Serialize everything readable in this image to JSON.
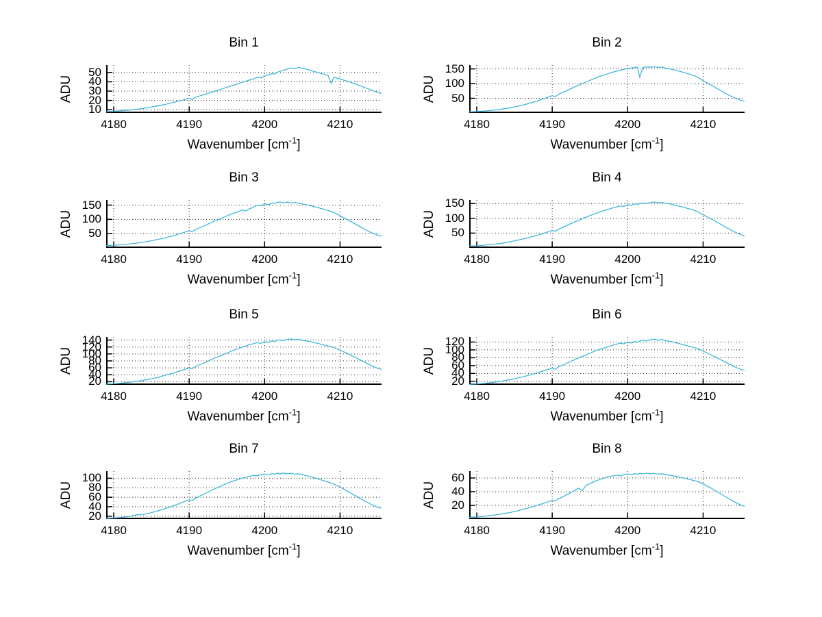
{
  "figure": {
    "background": "#ffffff"
  },
  "chart_data": {
    "type": "line",
    "line_color": "#3fb6dc",
    "grid": "dotted",
    "legend": "none",
    "ylabel": "ADU",
    "xlabel_prefix": "Wavenumber [cm",
    "xlabel_sup": "-1",
    "xlabel_suffix": "]",
    "xlim": [
      4179,
      4215.5
    ],
    "xticks": [
      4180,
      4190,
      4200,
      4210
    ],
    "x": [
      4179,
      4180,
      4181,
      4182,
      4183,
      4184,
      4185,
      4186,
      4187,
      4188,
      4189,
      4190,
      4190.4,
      4190.8,
      4191.5,
      4192,
      4193,
      4193.5,
      4194,
      4194.5,
      4195,
      4195.5,
      4196,
      4196.5,
      4197,
      4197.5,
      4198,
      4198.5,
      4199,
      4199.5,
      4200,
      4200.5,
      4201,
      4201.3,
      4201.6,
      4202,
      4202.5,
      4203,
      4203.5,
      4204,
      4204.5,
      4205,
      4205.5,
      4206,
      4206.5,
      4207,
      4207.5,
      4208,
      4208.4,
      4208.8,
      4209.2,
      4210,
      4211,
      4212,
      4213,
      4214,
      4215,
      4215.5
    ],
    "charts": [
      {
        "title": "Bin 1",
        "yticks": [
          10,
          20,
          30,
          40,
          50
        ],
        "ylim": [
          6.5,
          58
        ],
        "y": [
          8.0,
          8.3,
          8.9,
          9.6,
          10.5,
          11.6,
          12.9,
          14.4,
          16.1,
          18.0,
          20.1,
          22.3,
          21.0,
          23.3,
          25.1,
          26.4,
          28.9,
          30.1,
          31.4,
          32.8,
          34.1,
          35.4,
          36.7,
          38.0,
          39.3,
          40.6,
          41.9,
          43.1,
          44.8,
          44.2,
          46.3,
          47.6,
          49.0,
          48.2,
          50.0,
          51.2,
          52.4,
          53.6,
          55.0,
          53.9,
          55.6,
          54.4,
          53.6,
          52.4,
          51.3,
          50.1,
          48.9,
          47.9,
          47.0,
          38.5,
          44.8,
          43.2,
          40.6,
          37.8,
          34.7,
          31.6,
          28.6,
          27.3
        ]
      },
      {
        "title": "Bin 2",
        "yticks": [
          50,
          100,
          150
        ],
        "ylim": [
          0,
          163
        ],
        "y": [
          4.0,
          5.2,
          6.8,
          9.0,
          12.0,
          15.8,
          20.5,
          26.2,
          33.0,
          40.8,
          49.5,
          59.0,
          55.0,
          63.5,
          71.5,
          77.0,
          89.0,
          94.5,
          100.0,
          105.5,
          111.0,
          116.5,
          122.0,
          126.5,
          130.5,
          134.5,
          138.5,
          142.0,
          145.5,
          148.5,
          151.0,
          153.0,
          155.0,
          156.0,
          122.0,
          154.5,
          156.5,
          155.5,
          157.0,
          155.0,
          156.5,
          152.5,
          150.5,
          147.5,
          144.5,
          141.0,
          137.5,
          133.5,
          130.5,
          127.0,
          123.0,
          110.0,
          96.0,
          81.0,
          66.0,
          53.0,
          43.0,
          40.0
        ]
      },
      {
        "title": "Bin 3",
        "yticks": [
          50,
          100,
          150
        ],
        "ylim": [
          0,
          168
        ],
        "y": [
          8.0,
          9.3,
          11.0,
          13.5,
          16.5,
          20.5,
          25.0,
          30.5,
          36.5,
          43.5,
          51.5,
          60.0,
          57.0,
          64.0,
          71.5,
          77.5,
          89.5,
          95.5,
          101.0,
          106.5,
          112.0,
          117.5,
          122.5,
          127.0,
          132.5,
          129.5,
          137.5,
          142.0,
          150.0,
          147.5,
          154.5,
          151.5,
          158.0,
          155.5,
          159.0,
          161.0,
          158.0,
          160.5,
          157.5,
          159.5,
          156.5,
          153.5,
          151.5,
          148.0,
          145.0,
          141.5,
          138.0,
          134.5,
          131.5,
          128.0,
          124.5,
          112.5,
          98.5,
          84.0,
          69.0,
          55.0,
          44.5,
          41.5
        ]
      },
      {
        "title": "Bin 4",
        "yticks": [
          50,
          100,
          150
        ],
        "ylim": [
          0,
          162
        ],
        "y": [
          6.0,
          7.2,
          9.0,
          11.5,
          14.5,
          18.5,
          23.5,
          29.5,
          35.5,
          42.5,
          50.5,
          59.0,
          55.5,
          63.0,
          70.5,
          76.5,
          88.0,
          93.5,
          98.5,
          104.0,
          109.0,
          114.0,
          119.0,
          123.0,
          127.0,
          131.0,
          135.0,
          138.5,
          142.0,
          140.0,
          146.0,
          144.0,
          149.0,
          147.0,
          150.5,
          152.0,
          150.0,
          153.0,
          155.0,
          152.5,
          154.0,
          151.0,
          149.0,
          146.0,
          143.0,
          140.0,
          136.5,
          133.0,
          130.0,
          127.0,
          123.5,
          112.0,
          99.0,
          85.0,
          70.0,
          56.0,
          44.5,
          41.0
        ]
      },
      {
        "title": "Bin 5",
        "yticks": [
          20,
          40,
          60,
          80,
          100,
          120,
          140
        ],
        "ylim": [
          11,
          149
        ],
        "y": [
          13.0,
          14.2,
          16.0,
          18.3,
          21.0,
          24.5,
          28.5,
          33.5,
          39.5,
          45.5,
          52.5,
          59.5,
          57.5,
          63.5,
          69.5,
          74.5,
          84.5,
          89.5,
          93.5,
          98.0,
          102.5,
          107.0,
          111.5,
          115.5,
          119.5,
          122.5,
          126.5,
          129.5,
          132.5,
          130.5,
          135.5,
          133.5,
          137.5,
          135.5,
          138.5,
          140.5,
          138.5,
          141.5,
          143.5,
          140.5,
          142.5,
          139.5,
          137.5,
          135.5,
          133.0,
          130.5,
          128.0,
          125.0,
          123.0,
          121.0,
          118.0,
          111.0,
          101.0,
          90.0,
          79.0,
          68.0,
          58.5,
          55.5
        ]
      },
      {
        "title": "Bin 6",
        "yticks": [
          20,
          40,
          60,
          80,
          100,
          120
        ],
        "ylim": [
          11,
          133
        ],
        "y": [
          12.0,
          13.2,
          14.8,
          17.0,
          19.5,
          22.8,
          26.5,
          31.0,
          36.0,
          41.5,
          47.5,
          53.5,
          50.5,
          56.5,
          62.0,
          66.5,
          75.5,
          79.5,
          83.5,
          87.5,
          91.5,
          95.5,
          99.5,
          102.5,
          105.5,
          108.5,
          111.5,
          114.5,
          117.0,
          115.5,
          119.5,
          117.5,
          121.5,
          119.5,
          122.5,
          124.5,
          122.5,
          125.5,
          127.5,
          124.5,
          126.5,
          123.5,
          122.0,
          120.0,
          117.5,
          115.0,
          112.5,
          110.0,
          108.0,
          106.0,
          103.5,
          97.0,
          88.0,
          78.5,
          68.5,
          58.5,
          50.0,
          48.0
        ]
      },
      {
        "title": "Bin 7",
        "yticks": [
          20,
          40,
          60,
          80,
          100
        ],
        "ylim": [
          14,
          115
        ],
        "y": [
          15.5,
          16.3,
          17.5,
          19.2,
          23.0,
          24.0,
          27.5,
          32.0,
          37.0,
          42.5,
          48.5,
          54.5,
          52.5,
          58.0,
          63.0,
          67.0,
          75.0,
          78.5,
          82.0,
          85.5,
          89.0,
          92.0,
          95.0,
          97.5,
          100.0,
          102.0,
          104.0,
          106.0,
          105.0,
          107.5,
          109.0,
          107.0,
          110.0,
          108.0,
          110.5,
          109.5,
          111.0,
          109.5,
          110.5,
          108.5,
          109.5,
          107.5,
          105.5,
          103.5,
          101.5,
          99.0,
          96.5,
          94.0,
          92.0,
          90.0,
          87.5,
          81.5,
          72.5,
          63.5,
          54.5,
          46.0,
          39.0,
          37.0
        ]
      },
      {
        "title": "Bin 8",
        "yticks": [
          20,
          40,
          60
        ],
        "ylim": [
          0,
          70
        ],
        "y": [
          2.5,
          3.2,
          4.2,
          5.5,
          7.0,
          8.8,
          11.0,
          13.8,
          16.8,
          20.0,
          23.5,
          27.5,
          26.3,
          29.5,
          33.0,
          36.0,
          42.0,
          45.0,
          41.5,
          49.5,
          52.0,
          54.5,
          56.5,
          58.5,
          60.5,
          61.8,
          63.0,
          64.0,
          63.2,
          65.0,
          66.0,
          64.6,
          66.4,
          65.4,
          66.8,
          66.0,
          67.0,
          66.2,
          66.6,
          65.6,
          66.2,
          65.2,
          64.2,
          63.2,
          62.2,
          61.0,
          59.8,
          58.4,
          57.4,
          56.2,
          55.0,
          51.5,
          45.5,
          39.0,
          32.5,
          26.0,
          20.5,
          18.5
        ]
      }
    ]
  }
}
